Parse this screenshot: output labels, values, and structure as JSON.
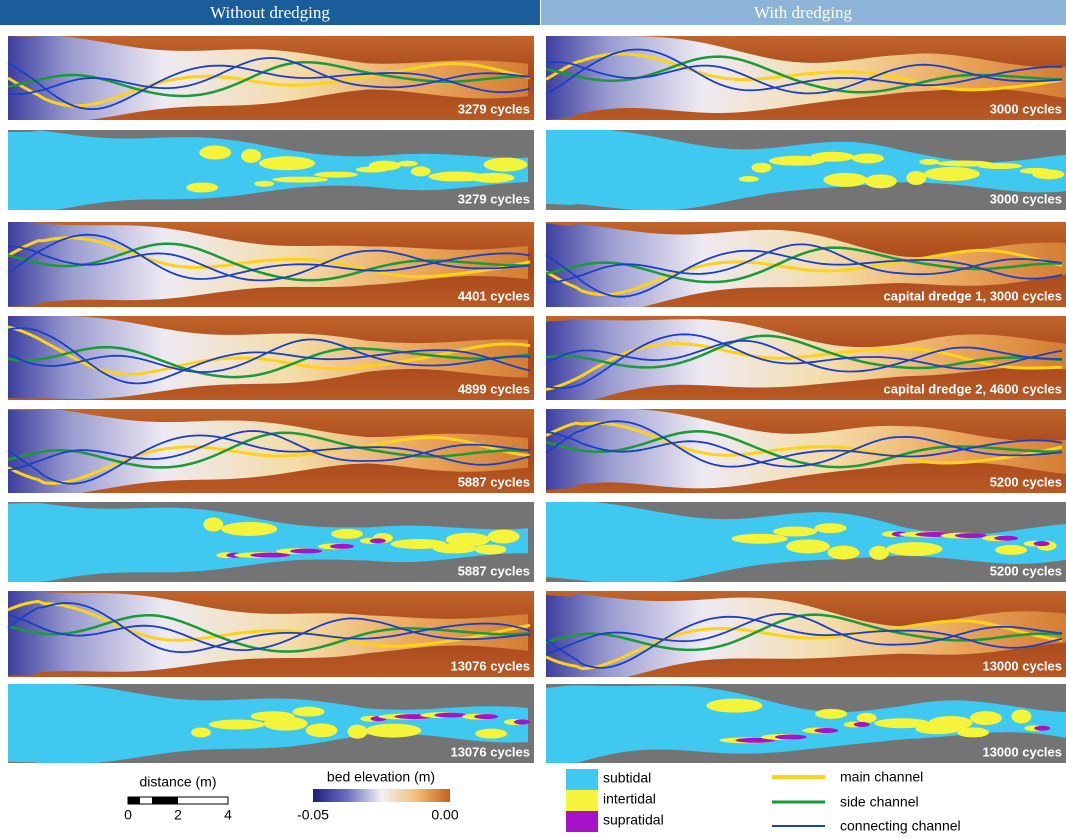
{
  "header": {
    "left": "Without dredging",
    "right": "With dredging"
  },
  "panels": {
    "left": [
      "3279 cycles",
      "3279 cycles",
      "4401 cycles",
      "4899 cycles",
      "5887 cycles",
      "5887 cycles",
      "13076 cycles",
      "13076 cycles"
    ],
    "right": [
      "3000 cycles",
      "3000 cycles",
      "capital dredge 1, 3000 cycles",
      "capital dredge 2, 4600 cycles",
      "5200 cycles",
      "5200 cycles",
      "13000 cycles",
      "13000 cycles"
    ]
  },
  "legend": {
    "distance": {
      "title": "distance (m)",
      "ticks": [
        "0",
        "2",
        "4"
      ]
    },
    "elevation": {
      "title": "bed elevation (m)",
      "min": "-0.05",
      "max": "0.00"
    },
    "zones": [
      "subtidal",
      "intertidal",
      "supratidal"
    ],
    "channels": [
      "main channel",
      "side channel",
      "connecting channel"
    ]
  }
}
